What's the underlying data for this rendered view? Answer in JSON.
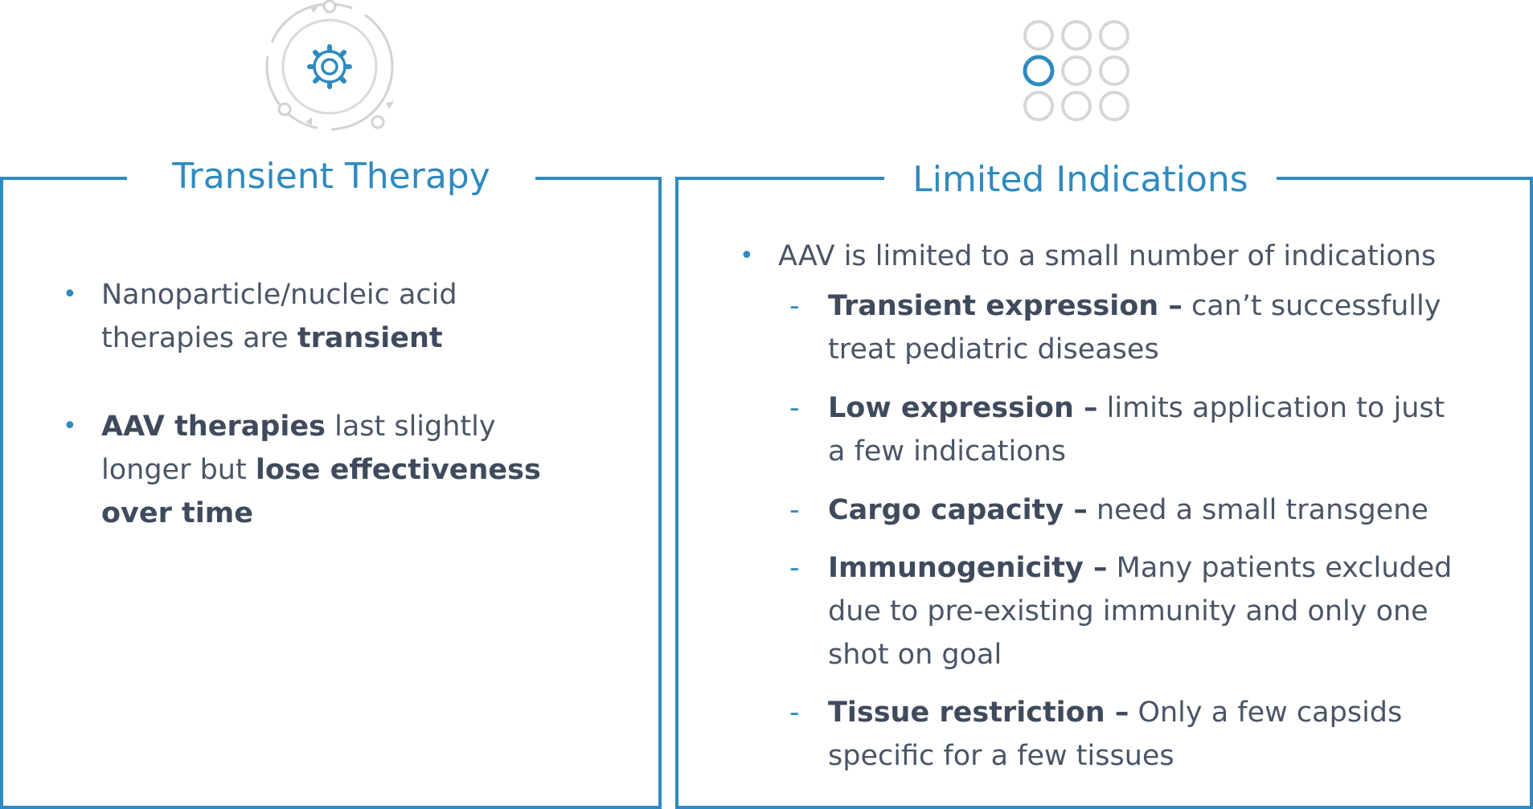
{
  "colors": {
    "accent": "#2f8abf",
    "text": "#4a5566",
    "icon_gray": "#d0d0d0"
  },
  "left_panel": {
    "icon": "gear-cycle-icon",
    "title": "Transient Therapy",
    "bullets": [
      {
        "l1": "Nanoparticle/nucleic acid",
        "l2a": "therapies are ",
        "l2b": "transient"
      },
      {
        "l1a": "AAV therapies",
        "l1b": " last slightly",
        "l2a": "longer but ",
        "l2b": "lose effectiveness",
        "l3": "over time"
      }
    ]
  },
  "right_panel": {
    "icon": "dot-grid-icon",
    "title": "Limited Indications",
    "bullet": "AAV is limited to a small number of indications",
    "dash": "-",
    "dot": "•",
    "items": [
      {
        "bold": "Transient expression –",
        "l1": " can’t successfully",
        "l2": "treat pediatric diseases"
      },
      {
        "bold": "Low expression –",
        "l1": " limits application to just",
        "l2": "a few indications"
      },
      {
        "bold": "Cargo capacity –",
        "l1": " need a small transgene"
      },
      {
        "bold": "Immunogenicity –",
        "l1": " Many patients excluded",
        "l2": "due to pre-existing immunity and only one",
        "l3": "shot on goal"
      },
      {
        "bold": "Tissue restriction –",
        "l1": " Only a few capsids",
        "l2": "specific for a few tissues"
      }
    ]
  }
}
